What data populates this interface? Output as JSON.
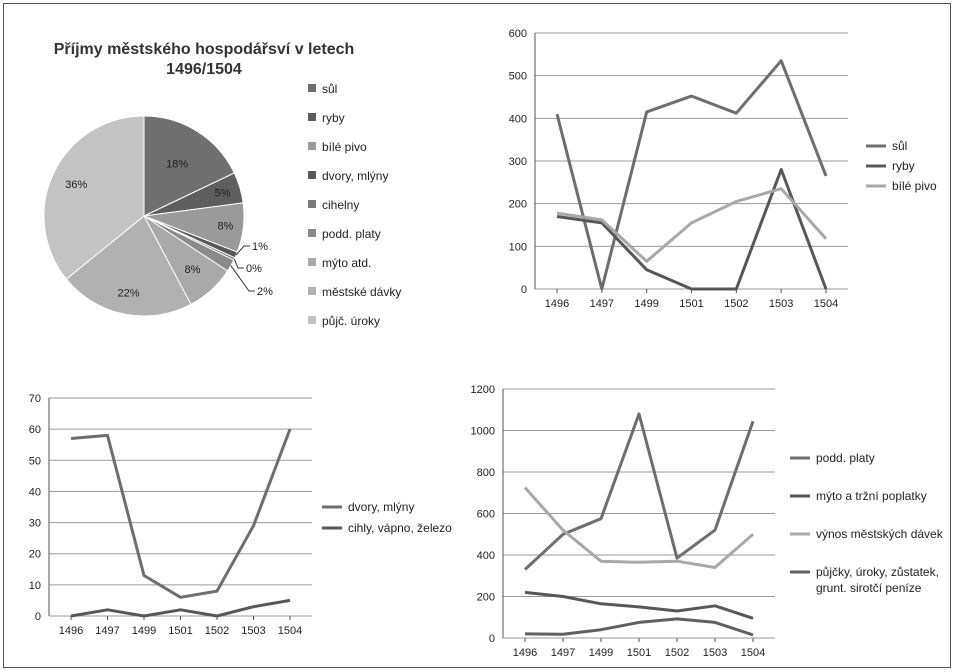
{
  "chart_data": [
    {
      "type": "pie",
      "title": "Příjmy městského hospodářsví v letech 1496/1504",
      "title_lines": [
        "Příjmy městského hospodářsví v letech",
        "1496/1504"
      ],
      "legend_placement": "right",
      "slices": [
        {
          "name": "sůl",
          "value": 18,
          "label": "18%",
          "color": "#6f6f6f"
        },
        {
          "name": "ryby",
          "value": 5,
          "label": "5%",
          "color": "#5e5e5e"
        },
        {
          "name": "bílé pivo",
          "value": 8,
          "label": "8%",
          "color": "#9a9a9a"
        },
        {
          "name": "dvory, mlýny",
          "value": 1,
          "label": "1%",
          "color": "#585858"
        },
        {
          "name": "cihelny",
          "value": 0.4,
          "label": "0%",
          "color": "#7a7a7a"
        },
        {
          "name": "podd. platy",
          "value": 2,
          "label": "2%",
          "color": "#8a8a8a"
        },
        {
          "name": "mýto atd.",
          "value": 8,
          "label": "8%",
          "color": "#a9a9a9"
        },
        {
          "name": "městské dávky",
          "value": 22,
          "label": "22%",
          "color": "#b1b1b1"
        },
        {
          "name": "půjč. úroky",
          "value": 36,
          "label": "36%",
          "color": "#c3c3c3"
        }
      ]
    },
    {
      "type": "line",
      "categories": [
        "1496",
        "1497",
        "1499",
        "1501",
        "1502",
        "1503",
        "1504"
      ],
      "ylim": [
        0,
        600
      ],
      "yticks": [
        0,
        100,
        200,
        300,
        400,
        500,
        600
      ],
      "grid": true,
      "legend_placement": "right",
      "series": [
        {
          "name": "sůl",
          "values": [
            410,
            0,
            415,
            452,
            412,
            535,
            265
          ],
          "color": "#6e6e6e"
        },
        {
          "name": "ryby",
          "values": [
            170,
            155,
            45,
            0,
            0,
            280,
            0
          ],
          "color": "#575757"
        },
        {
          "name": "bílé pivo",
          "values": [
            178,
            162,
            65,
            155,
            205,
            235,
            118
          ],
          "color": "#a8a8a8"
        }
      ]
    },
    {
      "type": "line",
      "categories": [
        "1496",
        "1497",
        "1499",
        "1501",
        "1502",
        "1503",
        "1504"
      ],
      "ylim": [
        0,
        70
      ],
      "yticks": [
        0,
        10,
        20,
        30,
        40,
        50,
        60,
        70
      ],
      "grid": true,
      "legend_placement": "right",
      "series": [
        {
          "name": "dvory, mlýny",
          "values": [
            57,
            58,
            13,
            6,
            8,
            29,
            60
          ],
          "color": "#6e6e6e"
        },
        {
          "name": "cihly, vápno, železo",
          "values": [
            0,
            2,
            0,
            2,
            0,
            3,
            5
          ],
          "color": "#575757"
        }
      ]
    },
    {
      "type": "line",
      "categories": [
        "1496",
        "1497",
        "1499",
        "1501",
        "1502",
        "1503",
        "1504"
      ],
      "ylim": [
        0,
        1200
      ],
      "yticks": [
        0,
        200,
        400,
        600,
        800,
        1000,
        1200
      ],
      "grid": true,
      "legend_placement": "right",
      "series": [
        {
          "name": "podd. platy",
          "values": [
            330,
            500,
            575,
            1080,
            385,
            520,
            1045
          ],
          "color": "#6e6e6e"
        },
        {
          "name": "mýto a tržní poplatky",
          "values": [
            220,
            200,
            165,
            150,
            130,
            155,
            95
          ],
          "color": "#575757"
        },
        {
          "name": "výnos městských dávek",
          "values": [
            725,
            520,
            370,
            365,
            370,
            340,
            500
          ],
          "color": "#a8a8a8"
        },
        {
          "name": "půjčky, úroky, zůstatek, grunt. sirotčí peníze",
          "name_lines": [
            "půjčky, úroky, zůstatek,",
            "grunt. sirotčí peníze"
          ],
          "values": [
            20,
            18,
            40,
            75,
            92,
            75,
            15
          ],
          "color": "#606060"
        }
      ]
    }
  ]
}
